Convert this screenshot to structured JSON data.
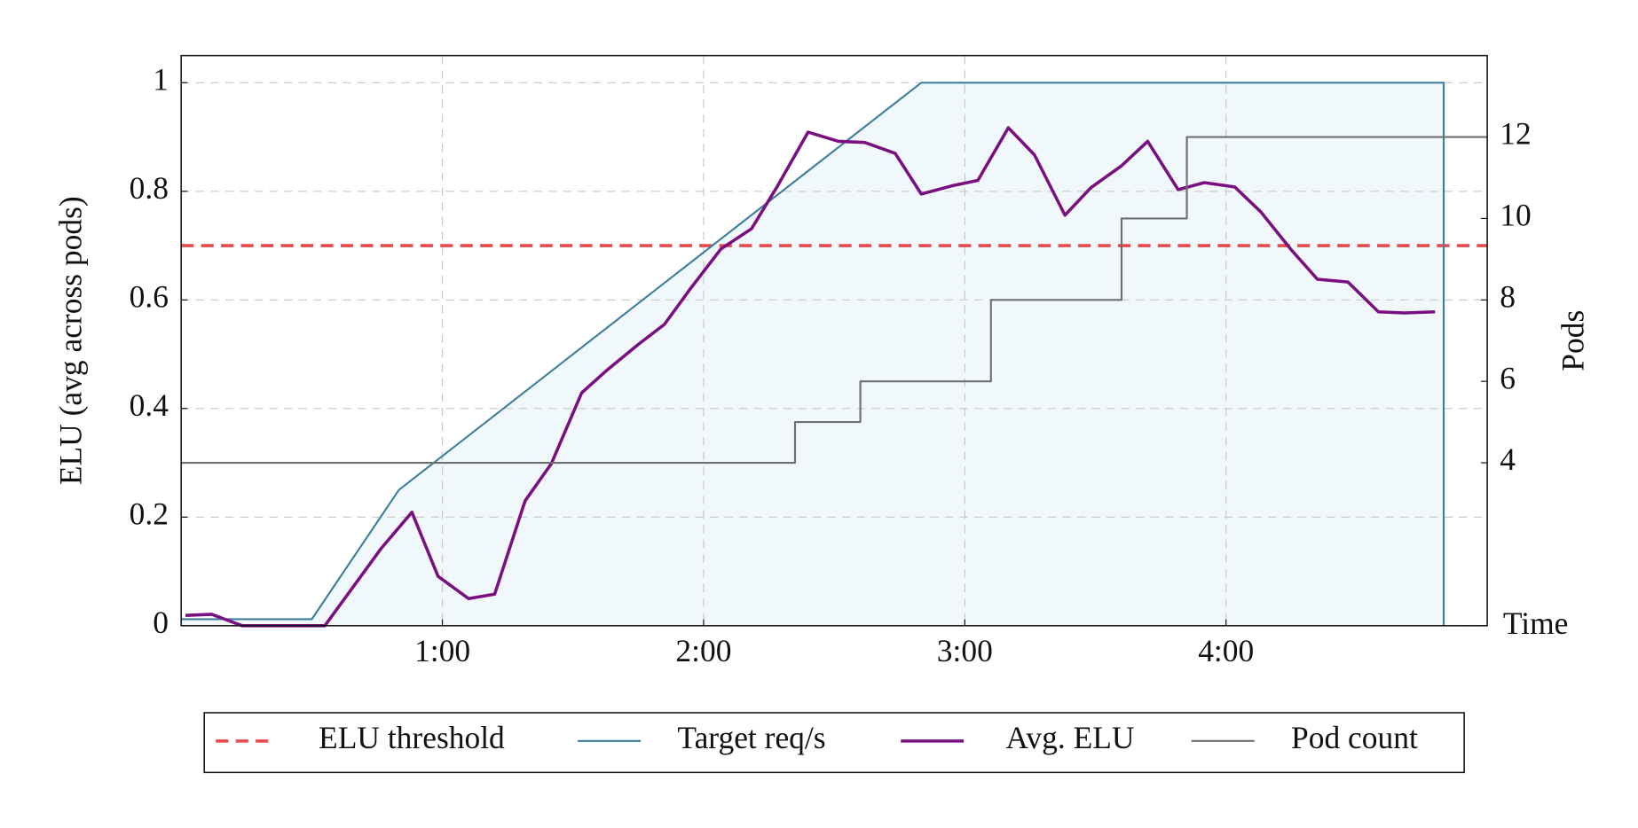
{
  "chart_data": {
    "type": "line",
    "x_label": "Time",
    "y_label": "ELU (avg across pods)",
    "y2_label": "Pods",
    "xlim": [
      0,
      300
    ],
    "xticks": [
      {
        "value": 60,
        "label": "1:00"
      },
      {
        "value": 120,
        "label": "2:00"
      },
      {
        "value": 180,
        "label": "3:00"
      },
      {
        "value": 240,
        "label": "4:00"
      }
    ],
    "ylim": [
      0,
      1.05
    ],
    "yticks": [
      0,
      0.2,
      0.4,
      0.6,
      0.8,
      1
    ],
    "y2lim": [
      0,
      14
    ],
    "y2ticks": [
      4,
      6,
      8,
      10,
      12
    ],
    "grid": true,
    "series": [
      {
        "name": "ELU threshold",
        "color": "#e8494a",
        "dash": true,
        "values": [
          0.7
        ]
      },
      {
        "name": "Target req/s",
        "color": "#3d7f9b",
        "fill": "#f1f8fb",
        "x": [
          0,
          30,
          50,
          170,
          290,
          290
        ],
        "values": [
          0.012,
          0.012,
          0.25,
          1,
          1,
          0
        ]
      },
      {
        "name": "Avg. ELU",
        "color": "#7a1080",
        "x": [
          1,
          7,
          14,
          33,
          40,
          46,
          53,
          59,
          66,
          72,
          79,
          85,
          92,
          98,
          105,
          111,
          117,
          124,
          131,
          137,
          144,
          151,
          157,
          164,
          170,
          177,
          183,
          190,
          196,
          203,
          209,
          216,
          222,
          229,
          235,
          242,
          248,
          255,
          261,
          268,
          275,
          281,
          288
        ],
        "values": [
          0.019,
          0.021,
          0,
          0,
          0.077,
          0.143,
          0.209,
          0.091,
          0.05,
          0.058,
          0.23,
          0.298,
          0.429,
          0.472,
          0.518,
          0.555,
          0.621,
          0.694,
          0.731,
          0.81,
          0.909,
          0.892,
          0.89,
          0.87,
          0.795,
          0.81,
          0.82,
          0.917,
          0.867,
          0.756,
          0.807,
          0.847,
          0.892,
          0.803,
          0.816,
          0.808,
          0.762,
          0.692,
          0.638,
          0.633,
          0.578,
          0.576,
          0.578
        ]
      },
      {
        "name": "Pod count",
        "color": "#6e6e6e",
        "axis": "y2",
        "x": [
          0,
          141,
          141,
          156,
          156,
          186,
          186,
          216,
          216,
          231,
          231,
          300
        ],
        "values": [
          4,
          4,
          5,
          5,
          6,
          6,
          8,
          8,
          10,
          10,
          12,
          12
        ]
      }
    ]
  }
}
